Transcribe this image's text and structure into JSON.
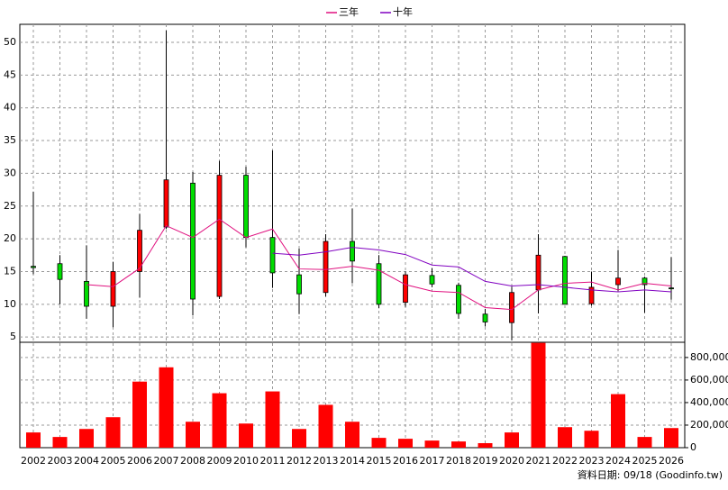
{
  "chart_data": {
    "type": "candlestick",
    "categories": [
      "2002",
      "2003",
      "2004",
      "2005",
      "2006",
      "2007",
      "2008",
      "2009",
      "2010",
      "2011",
      "2012",
      "2013",
      "2014",
      "2015",
      "2016",
      "2017",
      "2018",
      "2019",
      "2020",
      "2021",
      "2022",
      "2023",
      "2024",
      "2025",
      "2026"
    ],
    "open": [
      15.8,
      16.2,
      13.5,
      9.7,
      15,
      21.8,
      28.5,
      11.2,
      29.7,
      20.2,
      14.5,
      11.8,
      19.6,
      16.2,
      10.3,
      14.4,
      12.9,
      8.5,
      7.2,
      12.2,
      17.3,
      10.1,
      13,
      14,
      12.5
    ],
    "high": [
      27.2,
      17.5,
      19,
      16.5,
      23.8,
      51.8,
      30.2,
      31.9,
      31,
      33.5,
      18.5,
      20.7,
      24.6,
      17.5,
      15,
      15.5,
      13.3,
      9.3,
      12.7,
      20.7,
      17.4,
      15,
      18.3,
      14.2,
      17.2
    ],
    "low": [
      14.6,
      10,
      7.8,
      6.5,
      11,
      21.5,
      8.3,
      10.8,
      18.7,
      12.5,
      8.5,
      11.2,
      13.2,
      9.4,
      9.6,
      12.6,
      7.8,
      6.6,
      4.5,
      8.6,
      10,
      9.8,
      12,
      8.7,
      10.7
    ],
    "close": [
      15.6,
      13.8,
      9.7,
      15,
      21.3,
      29,
      10.8,
      29.7,
      20.2,
      14.8,
      11.6,
      19.6,
      16.6,
      10,
      14.5,
      13.1,
      8.6,
      7.3,
      11.8,
      17.5,
      10,
      12.6,
      14,
      13,
      12.4
    ],
    "up_color": "#ff0000",
    "down_color": "#00dd00",
    "series": [
      {
        "name": "三年",
        "color": "#e0107f",
        "values": [
          null,
          null,
          13,
          12.7,
          15.5,
          22,
          20.2,
          23,
          20.2,
          21.5,
          15.4,
          15.3,
          15.8,
          15.2,
          13,
          12,
          11.8,
          9.5,
          9.2,
          12.2,
          13.2,
          13.4,
          12.2,
          13.2,
          12.8
        ]
      },
      {
        "name": "十年",
        "color": "#8000c0",
        "values": [
          null,
          null,
          null,
          null,
          null,
          null,
          null,
          null,
          null,
          17.8,
          17.5,
          18,
          18.7,
          18.3,
          17.6,
          16,
          15.7,
          13.5,
          12.8,
          13,
          12.6,
          12.2,
          11.9,
          12.2,
          11.9
        ]
      }
    ],
    "ylim": [
      4.2,
      52.75
    ],
    "yticks": [
      5,
      10,
      15,
      20,
      25,
      30,
      35,
      40,
      45,
      50
    ],
    "volume": {
      "color": "#ff0000",
      "values": [
        135000,
        95000,
        166000,
        270000,
        586000,
        713000,
        230000,
        483000,
        214000,
        499000,
        166000,
        380000,
        230000,
        87000,
        79000,
        63000,
        55000,
        40000,
        135000,
        930000,
        182000,
        150000,
        475000,
        95000,
        174000
      ],
      "ylim": [
        0,
        935000
      ],
      "yticks": [
        0,
        {
          "value": 200000,
          "label": "200,000"
        },
        {
          "value": 400000,
          "label": "400,000"
        },
        {
          "value": 600000,
          "label": "600,000"
        },
        {
          "value": 800000,
          "label": "800,000"
        }
      ]
    },
    "grid": true,
    "source": "資料日期: 09/18 (Goodinfo.tw)"
  }
}
